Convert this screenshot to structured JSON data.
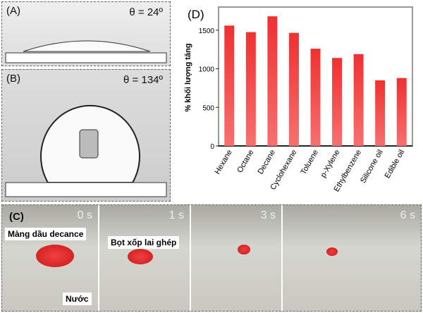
{
  "panel_a": {
    "label": "(A)",
    "angle": "θ = 24º"
  },
  "panel_b": {
    "label": "(B)",
    "angle": "θ = 134º"
  },
  "panel_c": {
    "label": "(C)",
    "times": [
      "0 s",
      "1 s",
      "3 s",
      "6 s"
    ],
    "caption_oil": "Màng dầu decance",
    "caption_water": "Nước",
    "caption_foam": "Bọt xốp lai ghép"
  },
  "chart_data": {
    "type": "bar",
    "title": "(D)",
    "categories": [
      "Hexane",
      "Octane",
      "Decane",
      "Cyclohexane",
      "Toluene",
      "p-Xylene",
      "Ethylbenzene",
      "Silicone oil",
      "Edible oil"
    ],
    "values": [
      1560,
      1475,
      1680,
      1465,
      1260,
      1140,
      1190,
      850,
      880
    ],
    "ylabel": "% khối lượng tăng",
    "xlabel": "",
    "ylim": [
      0,
      1800
    ],
    "yticks": [
      0,
      500,
      1000,
      1500
    ],
    "bar_color": "#f03030"
  }
}
